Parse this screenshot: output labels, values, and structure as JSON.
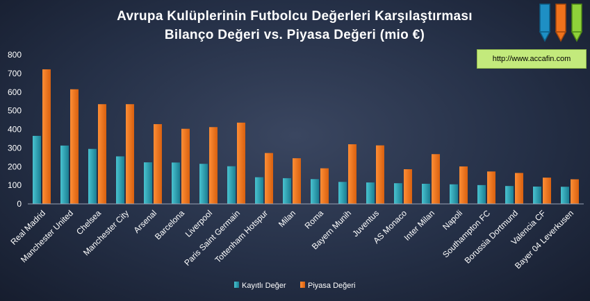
{
  "url": "http://www.accafin.com",
  "colors": {
    "kayitli": "#2fa4b4",
    "piyasa": "#f07a1e"
  },
  "chart_data": {
    "type": "bar",
    "title": [
      "Avrupa  Kulüplerinin  Futbolcu  Değerleri  Karşılaştırması",
      "Bilanço  Değeri  vs.  Piyasa  Değeri  (mio €)"
    ],
    "categories": [
      "Real Madrid",
      "Manchester United",
      "Chelsea",
      "Manchester City",
      "Arsenal",
      "Barcelona",
      "Liverpool",
      "Paris Saint Germain",
      "Tottenham Hotspur",
      "Milan",
      "Roma",
      "Bayern Munih",
      "Juventus",
      "AS Monaco",
      "Inter Milan",
      "Napoli",
      "Southampton FC",
      "Borussia Dortmund",
      "Valencia CF",
      "Bayer 04 Leverkusen"
    ],
    "series": [
      {
        "name": "Kayıtlı Değer",
        "values": [
          365,
          313,
          295,
          255,
          223,
          222,
          215,
          202,
          143,
          138,
          133,
          118,
          115,
          111,
          108,
          105,
          101,
          96,
          93,
          92
        ]
      },
      {
        "name": "Piyasa Değeri",
        "values": [
          722,
          615,
          535,
          535,
          428,
          403,
          412,
          436,
          273,
          245,
          191,
          320,
          314,
          186,
          267,
          201,
          174,
          166,
          141,
          132
        ]
      }
    ],
    "yticks": [
      "0",
      "100",
      "200",
      "300",
      "400",
      "500",
      "600",
      "700",
      "800"
    ],
    "ylim": [
      0,
      800
    ],
    "grid": false,
    "legend": "bottom"
  }
}
